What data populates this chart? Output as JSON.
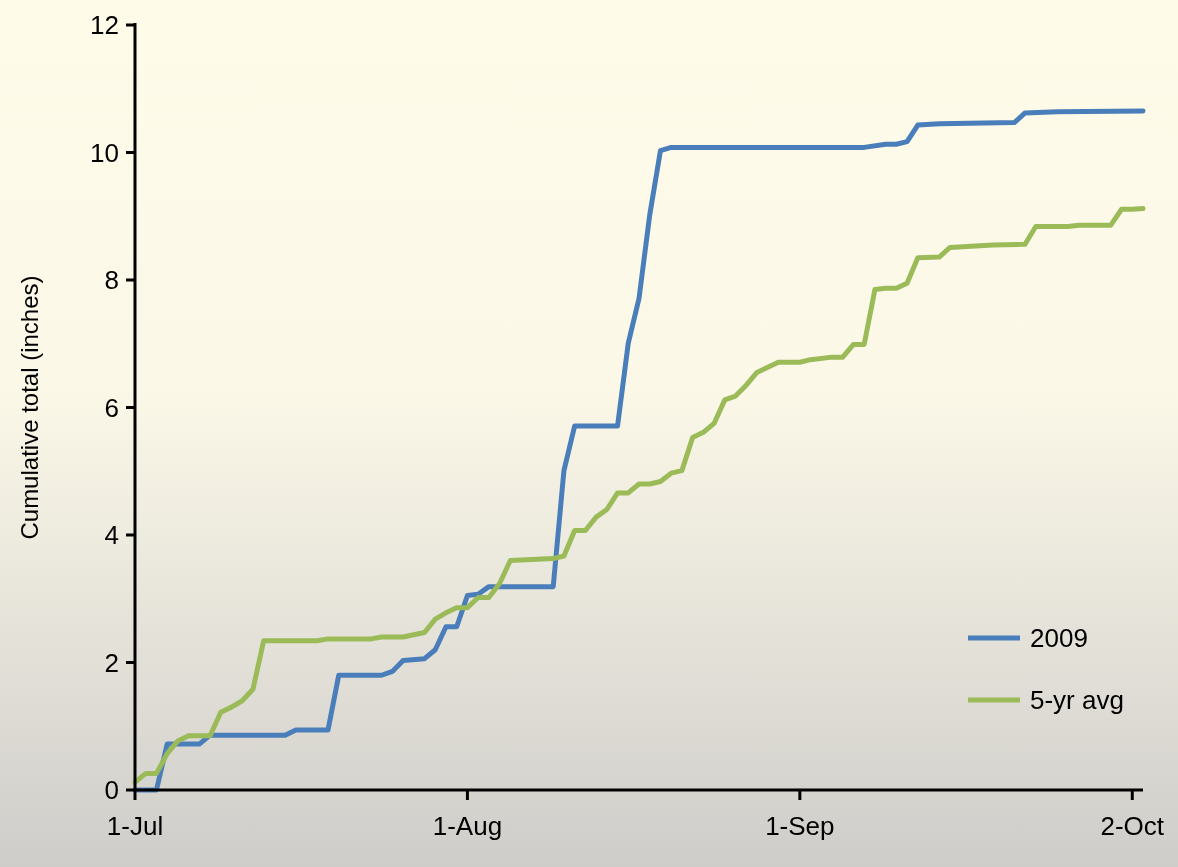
{
  "chart_data": {
    "type": "line",
    "ylabel": "Cumulative total (inches)",
    "xlim": [
      "2009-07-01",
      "2009-10-03"
    ],
    "xticks": [
      {
        "value": "2009-07-01",
        "label": "1-Jul"
      },
      {
        "value": "2009-08-01",
        "label": "1-Aug"
      },
      {
        "value": "2009-09-01",
        "label": "1-Sep"
      },
      {
        "value": "2009-10-02",
        "label": "2-Oct"
      }
    ],
    "ylim": [
      0,
      12
    ],
    "yticks": [
      0,
      2,
      4,
      6,
      8,
      10,
      12
    ],
    "grid": false,
    "legend": "bottom right",
    "series": [
      {
        "name": "2009",
        "color": "#4a7ebb",
        "x": [
          "2009-07-01",
          "2009-07-03",
          "2009-07-04",
          "2009-07-07",
          "2009-07-08",
          "2009-07-15",
          "2009-07-16",
          "2009-07-19",
          "2009-07-20",
          "2009-07-24",
          "2009-07-25",
          "2009-07-26",
          "2009-07-28",
          "2009-07-29",
          "2009-07-30",
          "2009-07-31",
          "2009-08-01",
          "2009-08-02",
          "2009-08-03",
          "2009-08-09",
          "2009-08-10",
          "2009-08-11",
          "2009-08-15",
          "2009-08-16",
          "2009-08-17",
          "2009-08-18",
          "2009-08-19",
          "2009-08-20",
          "2009-09-07",
          "2009-09-09",
          "2009-09-10",
          "2009-09-11",
          "2009-09-12",
          "2009-09-14",
          "2009-09-21",
          "2009-09-22",
          "2009-09-25",
          "2009-10-03"
        ],
        "values": [
          0,
          0,
          0.72,
          0.72,
          0.86,
          0.86,
          0.94,
          0.94,
          1.8,
          1.8,
          1.86,
          2.03,
          2.06,
          2.2,
          2.56,
          2.56,
          3.05,
          3.07,
          3.19,
          3.19,
          5.01,
          5.71,
          5.71,
          7.01,
          7.71,
          9.02,
          10.03,
          10.08,
          10.08,
          10.13,
          10.13,
          10.17,
          10.43,
          10.45,
          10.47,
          10.62,
          10.64,
          10.65
        ]
      },
      {
        "name": "5-yr avg",
        "color": "#9bbb59",
        "x": [
          "2009-07-01",
          "2009-07-02",
          "2009-07-03",
          "2009-07-04",
          "2009-07-05",
          "2009-07-06",
          "2009-07-08",
          "2009-07-09",
          "2009-07-10",
          "2009-07-11",
          "2009-07-12",
          "2009-07-13",
          "2009-07-18",
          "2009-07-19",
          "2009-07-23",
          "2009-07-24",
          "2009-07-26",
          "2009-07-28",
          "2009-07-29",
          "2009-07-30",
          "2009-07-31",
          "2009-08-01",
          "2009-08-02",
          "2009-08-03",
          "2009-08-04",
          "2009-08-05",
          "2009-08-09",
          "2009-08-10",
          "2009-08-11",
          "2009-08-12",
          "2009-08-13",
          "2009-08-14",
          "2009-08-15",
          "2009-08-16",
          "2009-08-17",
          "2009-08-18",
          "2009-08-19",
          "2009-08-20",
          "2009-08-21",
          "2009-08-22",
          "2009-08-23",
          "2009-08-24",
          "2009-08-25",
          "2009-08-26",
          "2009-08-27",
          "2009-08-28",
          "2009-08-30",
          "2009-09-01",
          "2009-09-02",
          "2009-09-04",
          "2009-09-05",
          "2009-09-06",
          "2009-09-07",
          "2009-09-08",
          "2009-09-09",
          "2009-09-10",
          "2009-09-11",
          "2009-09-12",
          "2009-09-14",
          "2009-09-15",
          "2009-09-17",
          "2009-09-19",
          "2009-09-22",
          "2009-09-23",
          "2009-09-26",
          "2009-09-27",
          "2009-09-30",
          "2009-10-01",
          "2009-10-02",
          "2009-10-03"
        ],
        "values": [
          0.12,
          0.26,
          0.26,
          0.57,
          0.77,
          0.85,
          0.85,
          1.22,
          1.3,
          1.4,
          1.58,
          2.34,
          2.34,
          2.37,
          2.37,
          2.4,
          2.4,
          2.47,
          2.68,
          2.78,
          2.86,
          2.86,
          3.02,
          3.02,
          3.24,
          3.6,
          3.63,
          3.67,
          4.07,
          4.07,
          4.28,
          4.4,
          4.66,
          4.66,
          4.8,
          4.8,
          4.84,
          4.97,
          5.01,
          5.53,
          5.61,
          5.75,
          6.12,
          6.18,
          6.35,
          6.55,
          6.71,
          6.71,
          6.75,
          6.79,
          6.79,
          6.99,
          6.99,
          7.85,
          7.87,
          7.87,
          7.95,
          8.35,
          8.36,
          8.51,
          8.53,
          8.55,
          8.56,
          8.84,
          8.84,
          8.86,
          8.86,
          9.11,
          9.11,
          9.12
        ]
      }
    ]
  }
}
